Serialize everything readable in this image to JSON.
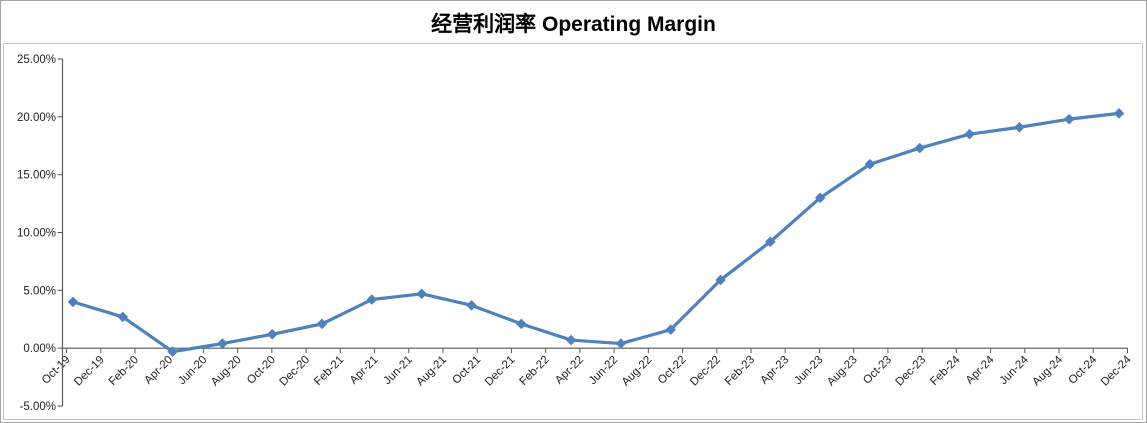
{
  "chart_data": {
    "type": "line",
    "title": "经营利润率 Operating Margin",
    "legend": "none",
    "grid": false,
    "marker_shape": "diamond",
    "series_color": "#4F81BD",
    "axis_line_color": "#595959",
    "frame_border_color": "#c6c6c6",
    "y_axis": {
      "unit": "%",
      "min": -5,
      "max": 25,
      "tick_labels": [
        "25.00%",
        "20.00%",
        "15.00%",
        "10.00%",
        "5.00%",
        "0.00%",
        "-5.00%"
      ]
    },
    "x_axis": {
      "tick_labels": [
        "Oct-19",
        "Dec-19",
        "Feb-20",
        "Apr-20",
        "Jun-20",
        "Aug-20",
        "Oct-20",
        "Dec-20",
        "Feb-21",
        "Apr-21",
        "Jun-21",
        "Aug-21",
        "Oct-21",
        "Dec-21",
        "Feb-22",
        "Apr-22",
        "Jun-22",
        "Aug-22",
        "Oct-22",
        "Dec-22",
        "Feb-23",
        "Apr-23",
        "Jun-23",
        "Aug-23",
        "Oct-23",
        "Dec-23",
        "Feb-24",
        "Apr-24",
        "Jun-24",
        "Aug-24",
        "Oct-24",
        "Dec-24"
      ]
    },
    "points": [
      {
        "x": "Oct-19",
        "y": 4.0
      },
      {
        "x": "Jan-20",
        "y": 2.7
      },
      {
        "x": "Apr-20",
        "y": -0.3
      },
      {
        "x": "Jul-20",
        "y": 0.4
      },
      {
        "x": "Oct-20",
        "y": 1.2
      },
      {
        "x": "Jan-21",
        "y": 2.1
      },
      {
        "x": "Apr-21",
        "y": 4.2
      },
      {
        "x": "Jul-21",
        "y": 4.7
      },
      {
        "x": "Oct-21",
        "y": 3.7
      },
      {
        "x": "Jan-22",
        "y": 2.1
      },
      {
        "x": "Apr-22",
        "y": 0.7
      },
      {
        "x": "Jul-22",
        "y": 0.4
      },
      {
        "x": "Oct-22",
        "y": 1.6
      },
      {
        "x": "Jan-23",
        "y": 5.9
      },
      {
        "x": "Apr-23",
        "y": 9.2
      },
      {
        "x": "Jul-23",
        "y": 13.0
      },
      {
        "x": "Oct-23",
        "y": 15.9
      },
      {
        "x": "Jan-24",
        "y": 17.3
      },
      {
        "x": "Apr-24",
        "y": 18.5
      },
      {
        "x": "Jul-24",
        "y": 19.1
      },
      {
        "x": "Oct-24",
        "y": 19.8
      },
      {
        "x": "Dec-24",
        "y": 20.3
      }
    ]
  }
}
